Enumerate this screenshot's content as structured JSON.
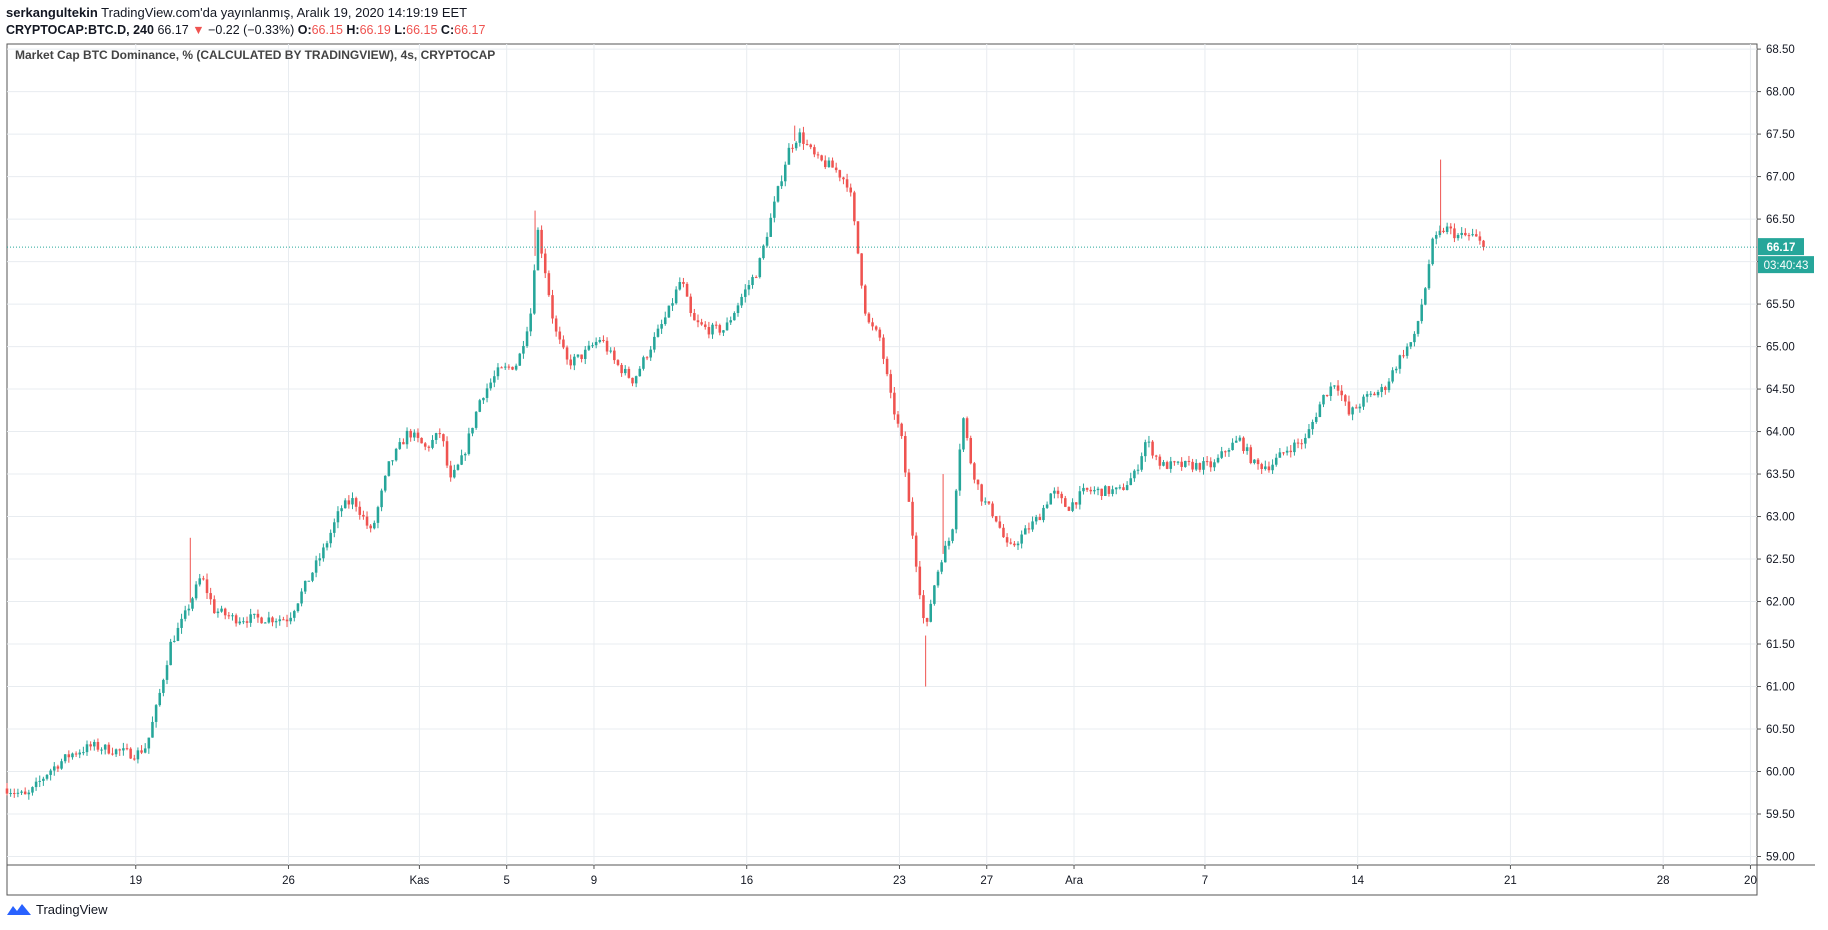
{
  "header": {
    "user": "serkangultekin",
    "published": "TradingView.com'da yayınlanmış, Aralık 19, 2020 14:19:19 EET",
    "symbol": "CRYPTOCAP:BTC.D, 240",
    "last": "66.17",
    "change": "−0.22 (−0.33%)",
    "o_label": "O:",
    "o": "66.15",
    "h_label": "H:",
    "h": "66.19",
    "l_label": "L:",
    "l": "66.15",
    "c_label": "C:",
    "c": "66.17"
  },
  "colors": {
    "up": "#26a69a",
    "down": "#ef5350",
    "grid": "#e8ecf0",
    "border": "#555555",
    "text": "#131722"
  },
  "chart_data": {
    "type": "candlestick",
    "title": "Market Cap BTC Dominance, % (CALCULATED BY TRADINGVIEW), 4s, CRYPTOCAP",
    "ylim": [
      58.9,
      68.56
    ],
    "y_ticks": [
      59.0,
      59.5,
      60.0,
      60.5,
      61.0,
      61.5,
      62.0,
      62.5,
      63.0,
      63.5,
      64.0,
      64.5,
      65.0,
      65.5,
      66.0,
      66.5,
      67.0,
      67.5,
      68.0,
      68.5
    ],
    "x_ticks": [
      {
        "label": "19",
        "day": 19
      },
      {
        "label": "26",
        "day": 26
      },
      {
        "label": "Kas",
        "day": 32
      },
      {
        "label": "5",
        "day": 36
      },
      {
        "label": "9",
        "day": 40
      },
      {
        "label": "16",
        "day": 47
      },
      {
        "label": "23",
        "day": 54
      },
      {
        "label": "27",
        "day": 58
      },
      {
        "label": "Ara",
        "day": 62
      },
      {
        "label": "7",
        "day": 68
      },
      {
        "label": "14",
        "day": 75
      },
      {
        "label": "21",
        "day": 82
      },
      {
        "label": "28",
        "day": 89
      },
      {
        "label": "20",
        "day": 93
      }
    ],
    "xlim_days": [
      13.1,
      93.3
    ],
    "price_anchors": [
      [
        13.1,
        59.8
      ],
      [
        14.0,
        59.7
      ],
      [
        15.0,
        60.0
      ],
      [
        16.0,
        60.2
      ],
      [
        17.0,
        60.3
      ],
      [
        18.0,
        60.25
      ],
      [
        19.0,
        60.2
      ],
      [
        19.5,
        60.3
      ],
      [
        20.0,
        60.8
      ],
      [
        20.6,
        61.5
      ],
      [
        21.2,
        61.8
      ],
      [
        22.0,
        62.3
      ],
      [
        22.6,
        61.9
      ],
      [
        23.5,
        61.8
      ],
      [
        25.0,
        61.8
      ],
      [
        26.0,
        61.8
      ],
      [
        26.8,
        62.2
      ],
      [
        27.6,
        62.6
      ],
      [
        28.4,
        63.1
      ],
      [
        29.0,
        63.2
      ],
      [
        29.8,
        62.8
      ],
      [
        30.6,
        63.6
      ],
      [
        31.5,
        64.0
      ],
      [
        32.3,
        63.8
      ],
      [
        33.0,
        64.0
      ],
      [
        33.4,
        63.4
      ],
      [
        34.0,
        63.7
      ],
      [
        34.8,
        64.4
      ],
      [
        35.6,
        64.7
      ],
      [
        36.5,
        64.8
      ],
      [
        37.1,
        65.4
      ],
      [
        37.4,
        66.4
      ],
      [
        37.7,
        66.0
      ],
      [
        38.2,
        65.2
      ],
      [
        38.8,
        64.8
      ],
      [
        39.5,
        64.9
      ],
      [
        40.3,
        65.1
      ],
      [
        41.0,
        64.8
      ],
      [
        41.8,
        64.6
      ],
      [
        42.6,
        65.0
      ],
      [
        43.4,
        65.4
      ],
      [
        44.0,
        65.8
      ],
      [
        44.5,
        65.3
      ],
      [
        45.2,
        65.2
      ],
      [
        46.0,
        65.2
      ],
      [
        46.8,
        65.6
      ],
      [
        47.5,
        65.9
      ],
      [
        48.3,
        66.7
      ],
      [
        48.9,
        67.3
      ],
      [
        49.4,
        67.5
      ],
      [
        50.2,
        67.2
      ],
      [
        51.0,
        67.1
      ],
      [
        51.7,
        66.9
      ],
      [
        52.1,
        66.1
      ],
      [
        52.5,
        65.3
      ],
      [
        53.1,
        65.1
      ],
      [
        53.6,
        64.4
      ],
      [
        54.1,
        63.9
      ],
      [
        54.5,
        63.0
      ],
      [
        54.9,
        62.2
      ],
      [
        55.2,
        61.6
      ],
      [
        55.5,
        62.1
      ],
      [
        55.9,
        62.5
      ],
      [
        56.4,
        62.8
      ],
      [
        56.9,
        64.2
      ],
      [
        57.3,
        63.6
      ],
      [
        57.8,
        63.2
      ],
      [
        58.4,
        63.0
      ],
      [
        59.0,
        62.6
      ],
      [
        59.7,
        62.8
      ],
      [
        60.4,
        63.0
      ],
      [
        61.0,
        63.3
      ],
      [
        61.7,
        63.1
      ],
      [
        62.5,
        63.3
      ],
      [
        63.3,
        63.3
      ],
      [
        64.1,
        63.3
      ],
      [
        64.8,
        63.5
      ],
      [
        65.3,
        63.9
      ],
      [
        66.0,
        63.6
      ],
      [
        66.8,
        63.6
      ],
      [
        67.6,
        63.6
      ],
      [
        68.4,
        63.6
      ],
      [
        69.0,
        63.8
      ],
      [
        69.6,
        63.9
      ],
      [
        70.3,
        63.6
      ],
      [
        71.0,
        63.6
      ],
      [
        71.8,
        63.8
      ],
      [
        72.6,
        63.9
      ],
      [
        73.4,
        64.4
      ],
      [
        74.0,
        64.6
      ],
      [
        74.6,
        64.2
      ],
      [
        75.4,
        64.4
      ],
      [
        76.2,
        64.5
      ],
      [
        77.0,
        64.9
      ],
      [
        77.6,
        65.1
      ],
      [
        78.1,
        65.7
      ],
      [
        78.4,
        66.2
      ],
      [
        79.0,
        66.4
      ],
      [
        79.6,
        66.3
      ],
      [
        80.3,
        66.3
      ],
      [
        80.8,
        66.17
      ]
    ],
    "spikes": [
      [
        21.5,
        62.75,
        "high"
      ],
      [
        55.2,
        61.0,
        "low"
      ],
      [
        78.8,
        67.2,
        "high"
      ],
      [
        37.3,
        66.6,
        "high"
      ],
      [
        49.2,
        67.6,
        "high"
      ],
      [
        56.0,
        63.5,
        "high"
      ]
    ],
    "last_price": 66.17,
    "last_price_label": "66.17",
    "countdown_label": "03:40:43"
  },
  "footer": {
    "brand": "TradingView"
  }
}
